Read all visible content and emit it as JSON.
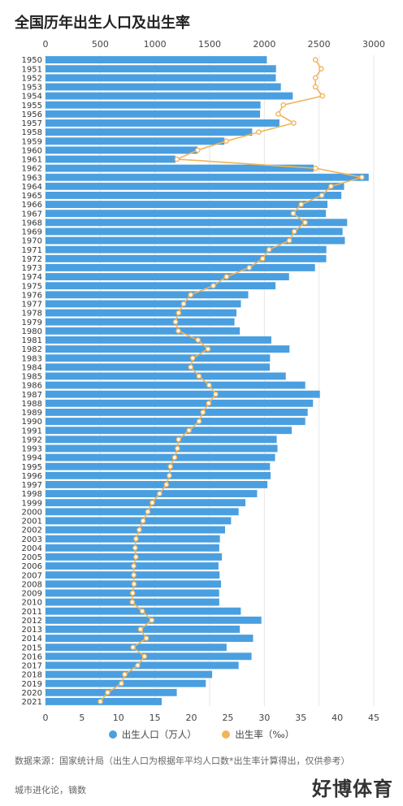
{
  "title": "全国历年出生人口及出生率",
  "source": "数据来源：国家统计局（出生人口为根据年平均人口数*出生率计算得出，仅供参考）",
  "credit": "城市进化论，镝数",
  "corner_logo": "好博体育",
  "colors": {
    "bar": "#4a9fe0",
    "line": "#f0b45a",
    "grid": "#e6e6e6"
  },
  "chart_data": {
    "type": "bar",
    "orientation": "horizontal",
    "title": "全国历年出生人口及出生率",
    "legend_position": "bottom",
    "categories": [
      "1950",
      "1951",
      "1952",
      "1953",
      "1954",
      "1955",
      "1956",
      "1957",
      "1958",
      "1959",
      "1960",
      "1961",
      "1962",
      "1963",
      "1964",
      "1965",
      "1966",
      "1967",
      "1968",
      "1969",
      "1970",
      "1971",
      "1972",
      "1973",
      "1974",
      "1975",
      "1976",
      "1977",
      "1978",
      "1979",
      "1980",
      "1981",
      "1982",
      "1983",
      "1984",
      "1985",
      "1986",
      "1987",
      "1988",
      "1989",
      "1990",
      "1991",
      "1992",
      "1993",
      "1994",
      "1995",
      "1996",
      "1997",
      "1998",
      "1999",
      "2000",
      "2001",
      "2002",
      "2003",
      "2004",
      "2005",
      "2006",
      "2007",
      "2008",
      "2009",
      "2010",
      "2011",
      "2012",
      "2013",
      "2014",
      "2015",
      "2016",
      "2017",
      "2018",
      "2019",
      "2020",
      "2021"
    ],
    "top_axis": {
      "min": 0,
      "max": 3000,
      "ticks": [
        "0",
        "500",
        "1000",
        "1500",
        "2000",
        "2500",
        "3000"
      ]
    },
    "bottom_axis": {
      "min": 0,
      "max": 45,
      "ticks": [
        "0",
        "5",
        "10",
        "15",
        "20",
        "25",
        "30",
        "35",
        "40",
        "45"
      ]
    },
    "series": [
      {
        "name": "出生人口（万人）",
        "type": "bar",
        "axis": "top",
        "values": [
          2023,
          2107,
          2105,
          2151,
          2260,
          1965,
          1961,
          2138,
          1889,
          1635,
          1389,
          1187,
          2451,
          2954,
          2729,
          2704,
          2577,
          2563,
          2757,
          2715,
          2736,
          2567,
          2566,
          2463,
          2226,
          2102,
          1853,
          1786,
          1745,
          1727,
          1776,
          2064,
          2230,
          2052,
          2050,
          2196,
          2374,
          2508,
          2445,
          2396,
          2374,
          2250,
          2113,
          2120,
          2098,
          2052,
          2057,
          2028,
          1934,
          1827,
          1765,
          1696,
          1641,
          1594,
          1588,
          1612,
          1581,
          1591,
          1604,
          1587,
          1588,
          1785,
          1973,
          1776,
          1897,
          1655,
          1883,
          1765,
          1523,
          1465,
          1200,
          1062
        ]
      },
      {
        "name": "出生率（‰）",
        "type": "line",
        "axis": "bottom",
        "values": [
          37,
          37.8,
          37,
          37,
          37.97,
          32.6,
          31.9,
          34.03,
          29.22,
          24.78,
          20.86,
          18.02,
          37.01,
          43.37,
          39.14,
          37.88,
          35.05,
          33.96,
          35.59,
          34.11,
          33.43,
          30.65,
          29.77,
          27.93,
          24.82,
          23.01,
          19.91,
          18.93,
          18.25,
          17.82,
          18.21,
          20.91,
          22.28,
          20.19,
          19.9,
          21.04,
          22.43,
          23.33,
          22.37,
          21.58,
          21.06,
          19.68,
          18.24,
          18.09,
          17.7,
          17.12,
          16.98,
          16.57,
          15.64,
          14.64,
          14.03,
          13.38,
          12.86,
          12.41,
          12.29,
          12.4,
          12.09,
          12.1,
          12.14,
          11.95,
          11.9,
          13.27,
          14.57,
          13.03,
          13.83,
          11.99,
          13.57,
          12.64,
          10.86,
          10.41,
          8.52,
          7.52
        ]
      }
    ]
  }
}
